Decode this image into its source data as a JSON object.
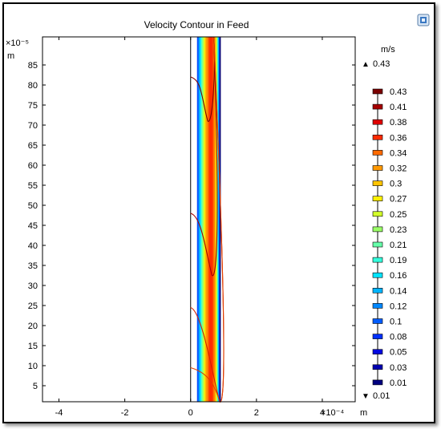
{
  "chart_data": {
    "type": "contour",
    "title": "Velocity Contour in Feed",
    "x_unit": "m",
    "x_multiplier": "×10⁻⁴",
    "y_unit": "m",
    "y_multiplier": "×10⁻⁵",
    "x_ticks": [
      -4,
      -2,
      0,
      2,
      4
    ],
    "y_ticks": [
      5,
      10,
      15,
      20,
      25,
      30,
      35,
      40,
      45,
      50,
      55,
      60,
      65,
      70,
      75,
      80,
      85
    ],
    "xlim": [
      -4.5,
      5.0
    ],
    "ylim": [
      1,
      92
    ],
    "colorbar": {
      "unit": "m/s",
      "max_label": "0.43",
      "min_label": "0.01",
      "levels": [
        {
          "value": "0.43",
          "color": "#7a0000"
        },
        {
          "value": "0.41",
          "color": "#a60000"
        },
        {
          "value": "0.38",
          "color": "#e00000"
        },
        {
          "value": "0.36",
          "color": "#ff2a00"
        },
        {
          "value": "0.34",
          "color": "#ff6a00"
        },
        {
          "value": "0.32",
          "color": "#ff9900"
        },
        {
          "value": "0.3",
          "color": "#ffc400"
        },
        {
          "value": "0.27",
          "color": "#fff000"
        },
        {
          "value": "0.25",
          "color": "#d4ff2a"
        },
        {
          "value": "0.23",
          "color": "#9aff66"
        },
        {
          "value": "0.21",
          "color": "#66ffaa"
        },
        {
          "value": "0.19",
          "color": "#33ffdd"
        },
        {
          "value": "0.16",
          "color": "#00e5ff"
        },
        {
          "value": "0.14",
          "color": "#00b4ff"
        },
        {
          "value": "0.12",
          "color": "#0088ff"
        },
        {
          "value": "0.1",
          "color": "#005cff"
        },
        {
          "value": "0.08",
          "color": "#0030ff"
        },
        {
          "value": "0.05",
          "color": "#0008e0"
        },
        {
          "value": "0.03",
          "color": "#0000b0"
        },
        {
          "value": "0.01",
          "color": "#000080"
        }
      ]
    },
    "channel": {
      "x_left": 0,
      "x_right": 0.9
    },
    "hook_contours": [
      {
        "y_top": 82,
        "y_min": 71,
        "x_min": 0.52,
        "color": "#7a0000"
      },
      {
        "y_top": 48,
        "y_min": 32.5,
        "x_min": 0.65,
        "color": "#a60000"
      },
      {
        "y_top": 24.5,
        "y_min": 1,
        "x_min": 0.88,
        "color": "#d02000"
      },
      {
        "y_top": 9.5,
        "y_min": 1,
        "x_min": 0.88,
        "color": "#e04000"
      }
    ]
  }
}
